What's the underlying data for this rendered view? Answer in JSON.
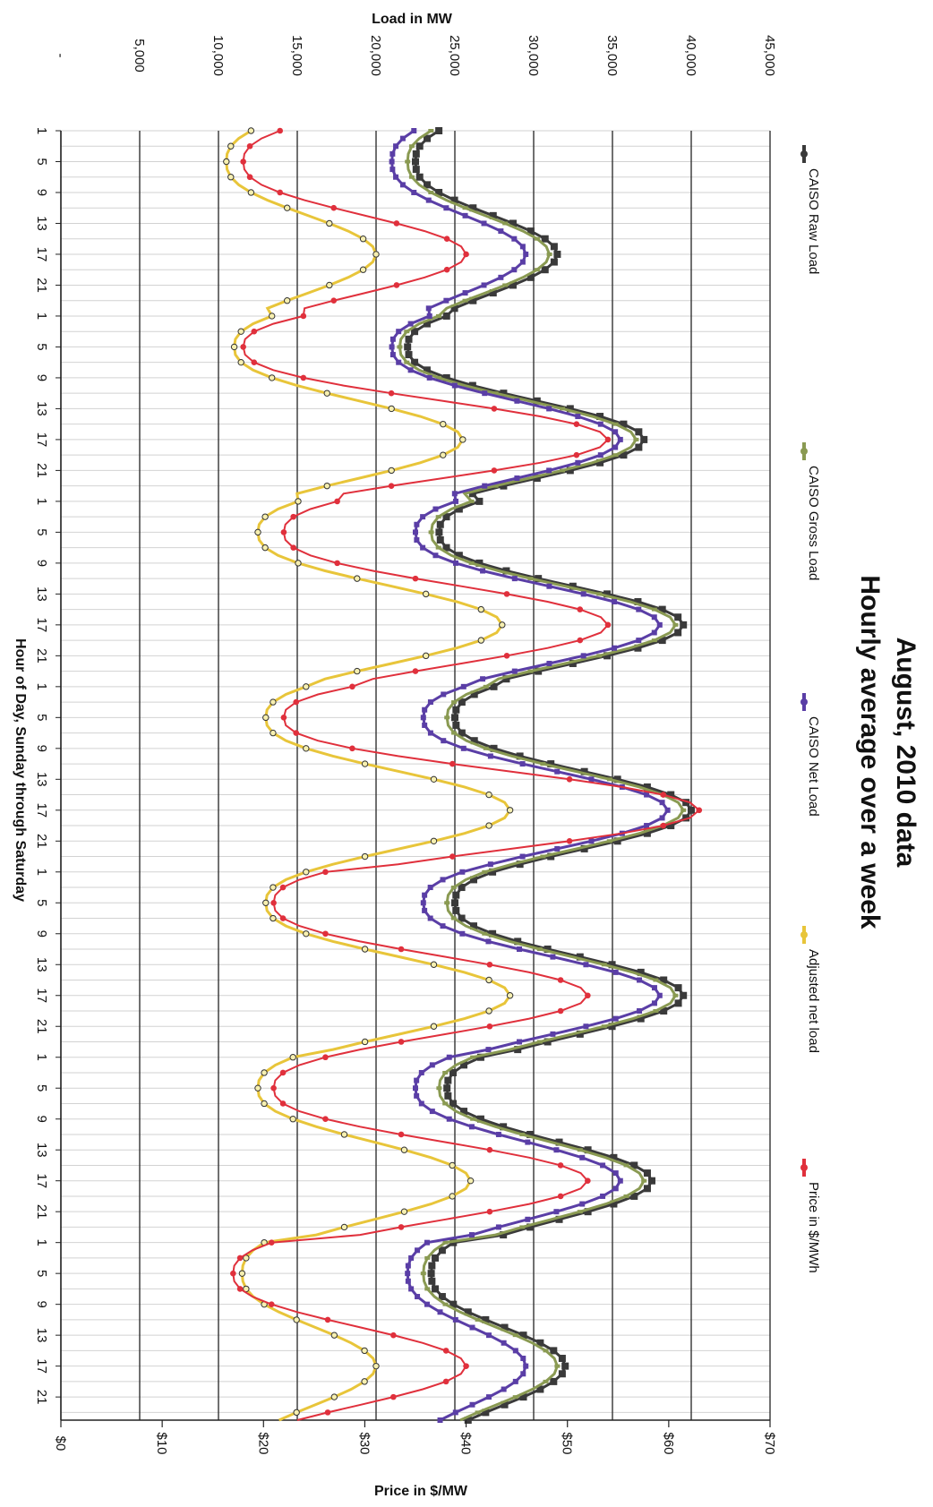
{
  "chart_data": {
    "type": "line",
    "title": "August, 2010 data",
    "subtitle": "Hourly average over a week",
    "x_label": "Hour of Day, Sunday through Saturday",
    "x_ticks": [
      "1",
      "5",
      "9",
      "13",
      "17",
      "21",
      "1",
      "5",
      "9",
      "13",
      "17",
      "21",
      "1",
      "5",
      "9",
      "13",
      "17",
      "21",
      "1",
      "5",
      "9",
      "13",
      "17",
      "21",
      "1",
      "5",
      "9",
      "13",
      "17",
      "21",
      "1",
      "5",
      "9",
      "13",
      "17",
      "21",
      "1",
      "5",
      "9",
      "13",
      "17",
      "21"
    ],
    "load_axis": {
      "label": "Load in MW",
      "range": [
        0,
        45000
      ],
      "tick_values": [
        0,
        5000,
        10000,
        15000,
        20000,
        25000,
        30000,
        35000,
        40000,
        45000
      ],
      "tick_labels": [
        "-",
        "5,000",
        "10,000",
        "15,000",
        "20,000",
        "25,000",
        "30,000",
        "35,000",
        "40,000",
        "45,000"
      ]
    },
    "price_axis": {
      "label": "Price in $/MW",
      "range": [
        0,
        70
      ],
      "tick_values": [
        0,
        10,
        20,
        30,
        40,
        50,
        60,
        70
      ],
      "tick_labels": [
        "$0",
        "$10",
        "$20",
        "$30",
        "$40",
        "$50",
        "$60",
        "$70"
      ]
    },
    "days": 7,
    "series": [
      {
        "name": "CAISO Raw Load",
        "axis": "load",
        "color": "#3a3a3a",
        "marker": "square",
        "daily_min": [
          22500,
          22000,
          24000,
          25000,
          25000,
          24500,
          23500
        ],
        "daily_max": [
          31500,
          37000,
          39500,
          40000,
          39500,
          37500,
          32000
        ]
      },
      {
        "name": "CAISO Gross Load",
        "axis": "load",
        "color": "#8a9a52",
        "marker": "dash",
        "daily_min": [
          22000,
          21500,
          23500,
          24500,
          24500,
          24000,
          23000
        ],
        "daily_max": [
          31000,
          36500,
          39000,
          39500,
          39000,
          37000,
          31500
        ]
      },
      {
        "name": "CAISO Net Load",
        "axis": "load",
        "color": "#5a3ea6",
        "marker": "circle",
        "daily_min": [
          21000,
          21000,
          22500,
          23000,
          23000,
          22500,
          22000
        ],
        "daily_max": [
          29500,
          35500,
          38000,
          38500,
          38000,
          35500,
          29500
        ]
      },
      {
        "name": "Adjusted net load",
        "axis": "load",
        "color": "#e8c53a",
        "marker": "ring",
        "daily_min": [
          10500,
          11000,
          12500,
          13000,
          13000,
          12500,
          11500
        ],
        "daily_max": [
          20000,
          25500,
          28000,
          28500,
          28500,
          26000,
          20000
        ]
      },
      {
        "name": "Price in $/MWh",
        "axis": "price",
        "color": "#e0303c",
        "marker": "dot",
        "daily_min": [
          18,
          18,
          22,
          22,
          21,
          21,
          17
        ],
        "daily_max": [
          40,
          54,
          54,
          63,
          52,
          52,
          40
        ]
      }
    ]
  }
}
